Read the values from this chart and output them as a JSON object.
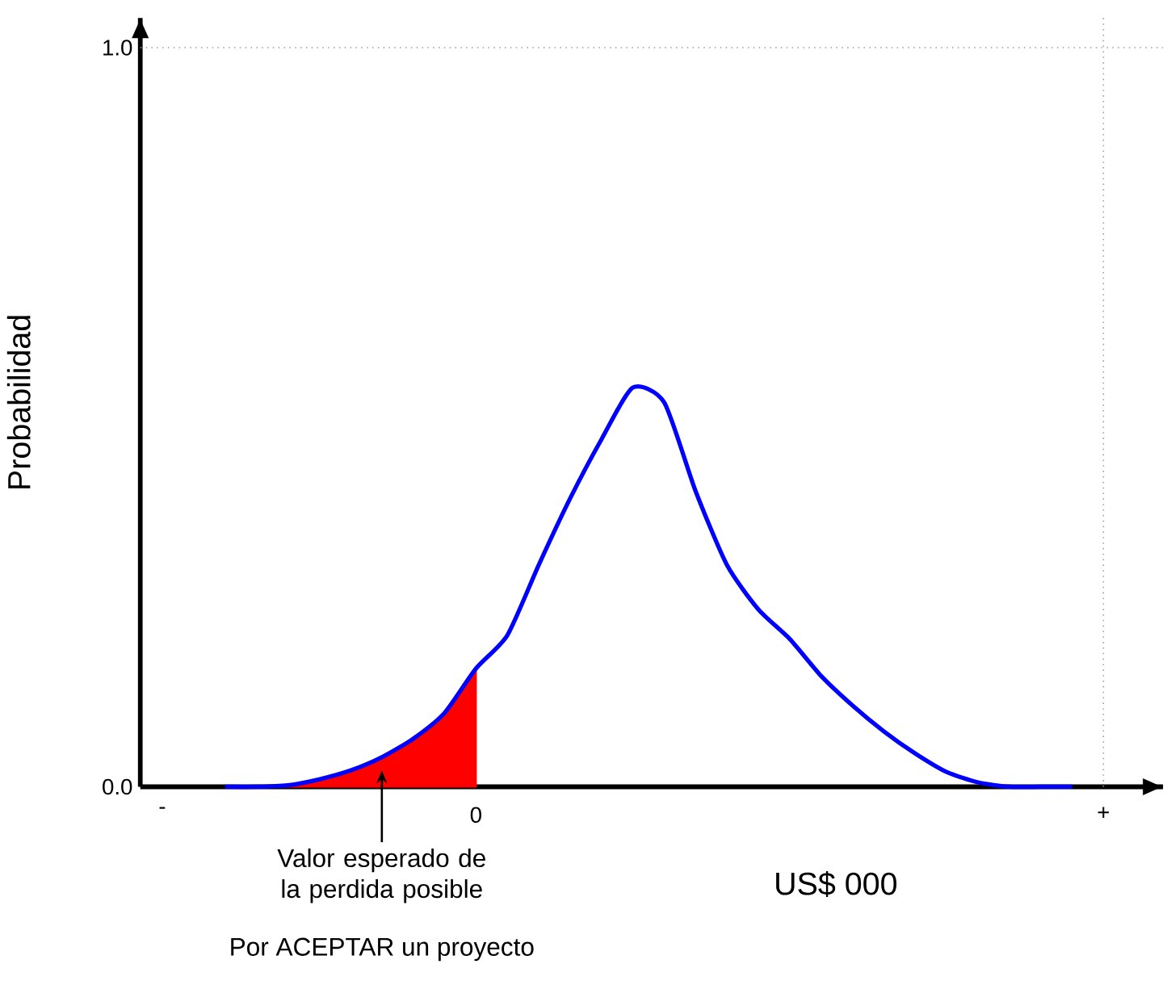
{
  "chart_data": {
    "type": "line",
    "xlabel": "US$ 000",
    "ylabel": "Probabilidad",
    "categories": [
      "-",
      null,
      null,
      null,
      null,
      null,
      null,
      null,
      null,
      null,
      "0",
      null,
      null,
      null,
      null,
      null,
      null,
      null,
      null,
      null,
      null,
      null,
      null,
      null,
      null,
      null,
      null,
      null,
      null,
      null,
      "+"
    ],
    "ylim": [
      0,
      1.04
    ],
    "yticks": [
      {
        "value": 0,
        "label": "0.0"
      },
      {
        "value": 1,
        "label": "1.0"
      }
    ],
    "series": [
      {
        "type": "area",
        "color": "#ff0000",
        "values": [
          null,
          null,
          null,
          null,
          0,
          0.01,
          0.022,
          0.04,
          0.065,
          0.1,
          0.16,
          null,
          null,
          null,
          null,
          null,
          null,
          null,
          null,
          null,
          null,
          null,
          null,
          null,
          null,
          null,
          null,
          null,
          null,
          null,
          null
        ]
      },
      {
        "color": "#0000ff",
        "values": [
          null,
          null,
          0,
          0,
          0.002,
          0.01,
          0.022,
          0.04,
          0.065,
          0.1,
          0.16,
          0.205,
          0.3,
          0.39,
          0.47,
          0.54,
          0.52,
          0.4,
          0.3,
          0.24,
          0.2,
          0.15,
          0.11,
          0.075,
          0.045,
          0.02,
          0.006,
          0,
          0,
          0,
          null
        ]
      }
    ],
    "ref_lines": [
      {
        "axis": "y",
        "value": 1,
        "color": "#a0a0a0",
        "line_style": "dotted"
      },
      {
        "axis": "x",
        "value": "+",
        "color": "#a0a0a0",
        "line_style": "dotted"
      }
    ],
    "annotations": [
      "Valor esperado de la perdida posible",
      "Por ACEPTAR un proyecto"
    ]
  }
}
